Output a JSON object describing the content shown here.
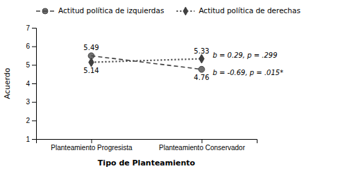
{
  "chart_data": {
    "type": "line",
    "categories": [
      "Planteamiento Progresista",
      "Planteamiento Conservador"
    ],
    "series": [
      {
        "name": "Actitud política de izquierdas",
        "color": "#404040",
        "values": [
          5.49,
          4.76
        ],
        "marker": "circle",
        "line_style": "dashed"
      },
      {
        "name": "Actitud política de derechas",
        "color": "#404040",
        "values": [
          5.14,
          5.33
        ],
        "marker": "diamond",
        "line_style": "dotted"
      }
    ],
    "ylim": [
      1,
      7
    ],
    "yticks": [
      1,
      2,
      3,
      4,
      5,
      6,
      7
    ],
    "ylabel": "Acuerdo",
    "xlabel": "Tipo de Planteamiento",
    "annotations": [
      "b = -0.69, p = .015*",
      "b = 0.29, p = .299"
    ],
    "data_labels": true,
    "legend": "top",
    "grid": false
  }
}
